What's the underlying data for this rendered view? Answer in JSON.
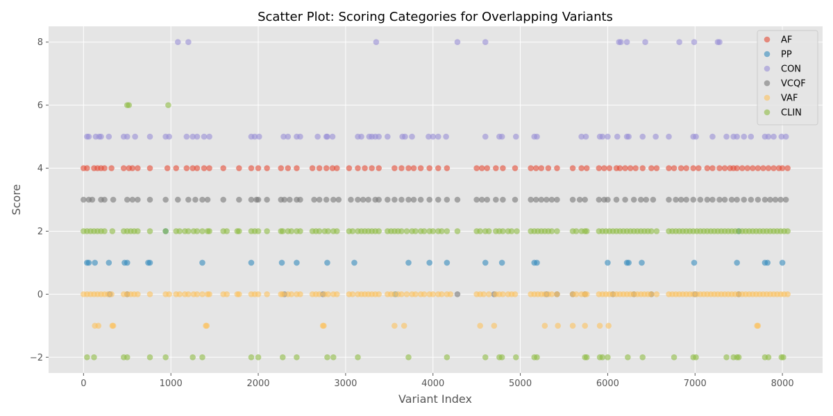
{
  "chart_data": {
    "type": "scatter",
    "title": "Scatter Plot: Scoring Categories for Overlapping Variants",
    "xlabel": "Variant Index",
    "ylabel": "Score",
    "xlim": [
      -400,
      8460
    ],
    "ylim": [
      -2.5,
      8.5
    ],
    "xticks": [
      0,
      1000,
      2000,
      3000,
      4000,
      5000,
      6000,
      7000,
      8000
    ],
    "yticks": [
      -2,
      0,
      2,
      4,
      6,
      8
    ],
    "grid": true,
    "legend_position": "top-right",
    "series": [
      {
        "name": "AF",
        "color": "#E24A33",
        "levels": [
          {
            "y": 4,
            "x": [
              0,
              40,
              120,
              160,
              200,
              240,
              320,
              460,
              520,
              560,
              620,
              760,
              960,
              1060,
              1180,
              1250,
              1300,
              1380,
              1440,
              1600,
              1780,
              1920,
              2000,
              2100,
              2260,
              2340,
              2440,
              2620,
              2700,
              2780,
              2850,
              2900,
              3040,
              3140,
              3220,
              3300,
              3380,
              3560,
              3640,
              3720,
              3780,
              3860,
              3960,
              4060,
              4160,
              4500,
              4560,
              4620,
              4720,
              4800,
              4940,
              5120,
              5180,
              5240,
              5320,
              5420,
              5600,
              5700,
              5760,
              5900,
              5960,
              6020,
              6100,
              6140,
              6200,
              6260,
              6320,
              6400,
              6500,
              6560,
              6700,
              6760,
              6840,
              6900,
              6980,
              7040,
              7140,
              7200,
              7280,
              7340,
              7400,
              7440,
              7480,
              7540,
              7600,
              7660,
              7720,
              7780,
              7840,
              7900,
              7960,
              8000,
              8060
            ]
          }
        ]
      },
      {
        "name": "PP",
        "color": "#348ABD",
        "levels": [
          {
            "y": 2,
            "x": [
              940,
              7500
            ]
          },
          {
            "y": 1,
            "x": [
              40,
              60,
              130,
              290,
              470,
              500,
              740,
              760,
              1360,
              1920,
              2270,
              2440,
              2790,
              3100,
              3720,
              3960,
              4160,
              4600,
              4790,
              5160,
              5190,
              6000,
              6220,
              6240,
              6390,
              6990,
              7480,
              7800,
              7830,
              8000
            ]
          },
          {
            "y": 0,
            "x": [
              3570
            ]
          }
        ]
      },
      {
        "name": "CON",
        "color": "#988ED5",
        "levels": [
          {
            "y": 8,
            "x": [
              1080,
              1200,
              3350,
              4280,
              4600,
              6130,
              6150,
              6220,
              6430,
              6820,
              6990,
              7260,
              7280
            ]
          },
          {
            "y": 5,
            "x": [
              40,
              60,
              140,
              180,
              200,
              290,
              460,
              500,
              590,
              760,
              940,
              980,
              1180,
              1250,
              1300,
              1380,
              1440,
              1920,
              1960,
              2010,
              2290,
              2340,
              2440,
              2480,
              2680,
              2780,
              2790,
              2850,
              3140,
              3180,
              3270,
              3300,
              3340,
              3380,
              3480,
              3650,
              3680,
              3760,
              3950,
              4000,
              4060,
              4150,
              4600,
              4760,
              4790,
              4950,
              5160,
              5190,
              5700,
              5750,
              5910,
              5940,
              6000,
              6110,
              6220,
              6240,
              6400,
              6550,
              6700,
              6980,
              7010,
              7200,
              7360,
              7440,
              7480,
              7560,
              7640,
              7800,
              7840,
              7900,
              7990,
              8040
            ]
          }
        ]
      },
      {
        "name": "VCQF",
        "color": "#777777",
        "levels": [
          {
            "y": 3,
            "x": [
              0,
              60,
              100,
              200,
              240,
              340,
              500,
              560,
              620,
              760,
              940,
              1080,
              1200,
              1280,
              1360,
              1420,
              1600,
              1780,
              1920,
              1980,
              2000,
              2100,
              2260,
              2300,
              2360,
              2440,
              2480,
              2640,
              2700,
              2780,
              2860,
              2920,
              3060,
              3140,
              3200,
              3260,
              3340,
              3380,
              3480,
              3560,
              3640,
              3720,
              3780,
              3860,
              3960,
              4060,
              4160,
              4280,
              4500,
              4560,
              4620,
              4720,
              4800,
              4940,
              5120,
              5180,
              5240,
              5300,
              5360,
              5420,
              5600,
              5680,
              5740,
              5900,
              5960,
              6000,
              6100,
              6200,
              6300,
              6380,
              6440,
              6520,
              6700,
              6780,
              6840,
              6900,
              6980,
              7060,
              7140,
              7200,
              7280,
              7340,
              7420,
              7480,
              7560,
              7640,
              7720,
              7800,
              7860,
              7920,
              7980,
              8040
            ]
          },
          {
            "y": 0,
            "x": [
              300,
              500,
              2300,
              2740,
              4280,
              4700,
              5300,
              5420,
              5600,
              5740,
              6060,
              6300,
              6500,
              7000,
              7500
            ]
          }
        ]
      },
      {
        "name": "VAF",
        "color": "#FBC15E",
        "levels": [
          {
            "y": 0,
            "x": [
              0,
              40,
              80,
              120,
              160,
              200,
              240,
              280,
              320,
              460,
              500,
              540,
              580,
              620,
              760,
              940,
              980,
              1060,
              1100,
              1160,
              1200,
              1260,
              1300,
              1360,
              1420,
              1440,
              1600,
              1640,
              1760,
              1780,
              1920,
              1960,
              2000,
              2100,
              2260,
              2280,
              2340,
              2380,
              2440,
              2480,
              2620,
              2660,
              2700,
              2760,
              2800,
              2860,
              2900,
              3040,
              3080,
              3140,
              3180,
              3220,
              3260,
              3300,
              3340,
              3380,
              3480,
              3520,
              3560,
              3600,
              3640,
              3700,
              3760,
              3800,
              3860,
              3900,
              3960,
              4000,
              4060,
              4100,
              4160,
              4200,
              4500,
              4540,
              4580,
              4640,
              4720,
              4760,
              4800,
              4860,
              4900,
              4940,
              5120,
              5160,
              5200,
              5240,
              5280,
              5320,
              5360,
              5420,
              5600,
              5640,
              5700,
              5740,
              5760,
              5900,
              5940,
              5980,
              6020,
              6060,
              6100,
              6140,
              6180,
              6220,
              6260,
              6300,
              6340,
              6380,
              6420,
              6460,
              6500,
              6560,
              6700,
              6740,
              6780,
              6820,
              6860,
              6900,
              6940,
              6980,
              7020,
              7060,
              7100,
              7140,
              7180,
              7220,
              7260,
              7300,
              7340,
              7380,
              7420,
              7460,
              7500,
              7540,
              7580,
              7620,
              7660,
              7700,
              7740,
              7780,
              7820,
              7860,
              7900,
              7940,
              7980,
              8020,
              8060
            ]
          },
          {
            "y": -1,
            "x": [
              130,
              170,
              330,
              340,
              1400,
              1410,
              2740,
              2750,
              3560,
              3670,
              4540,
              4700,
              5280,
              5430,
              5600,
              5740,
              5910,
              6010,
              7710,
              7720
            ]
          }
        ]
      },
      {
        "name": "CLIN",
        "color": "#8EBA42",
        "levels": [
          {
            "y": 6,
            "x": [
              500,
              520,
              970
            ]
          },
          {
            "y": 2,
            "x": [
              0,
              40,
              80,
              120,
              160,
              200,
              240,
              330,
              460,
              500,
              540,
              580,
              620,
              760,
              940,
              1060,
              1100,
              1160,
              1200,
              1260,
              1300,
              1360,
              1420,
              1440,
              1600,
              1640,
              1760,
              1780,
              1920,
              1960,
              2000,
              2100,
              2260,
              2280,
              2340,
              2380,
              2440,
              2480,
              2620,
              2660,
              2700,
              2760,
              2800,
              2860,
              2900,
              3040,
              3080,
              3140,
              3180,
              3220,
              3260,
              3300,
              3340,
              3380,
              3480,
              3520,
              3560,
              3600,
              3640,
              3700,
              3760,
              3800,
              3860,
              3900,
              3960,
              4000,
              4060,
              4100,
              4160,
              4280,
              4500,
              4540,
              4600,
              4640,
              4720,
              4760,
              4800,
              4860,
              4900,
              4960,
              5120,
              5160,
              5200,
              5240,
              5280,
              5320,
              5360,
              5420,
              5600,
              5640,
              5700,
              5740,
              5760,
              5900,
              5940,
              5980,
              6020,
              6060,
              6100,
              6140,
              6180,
              6220,
              6260,
              6300,
              6340,
              6380,
              6420,
              6460,
              6500,
              6560,
              6700,
              6740,
              6780,
              6820,
              6860,
              6900,
              6940,
              6980,
              7020,
              7060,
              7100,
              7140,
              7180,
              7220,
              7260,
              7300,
              7340,
              7380,
              7420,
              7460,
              7500,
              7540,
              7580,
              7620,
              7660,
              7700,
              7740,
              7780,
              7820,
              7860,
              7900,
              7940,
              7980,
              8020,
              8060
            ]
          },
          {
            "y": -2,
            "x": [
              40,
              120,
              460,
              500,
              760,
              940,
              1250,
              1360,
              1920,
              2000,
              2280,
              2440,
              2790,
              2860,
              3140,
              3720,
              4160,
              4600,
              4760,
              4790,
              4950,
              5160,
              5190,
              5740,
              5760,
              5910,
              5940,
              6000,
              6230,
              6400,
              6760,
              6980,
              7010,
              7360,
              7440,
              7480,
              7500,
              7800,
              7840,
              7990,
              8010
            ]
          }
        ]
      }
    ]
  }
}
